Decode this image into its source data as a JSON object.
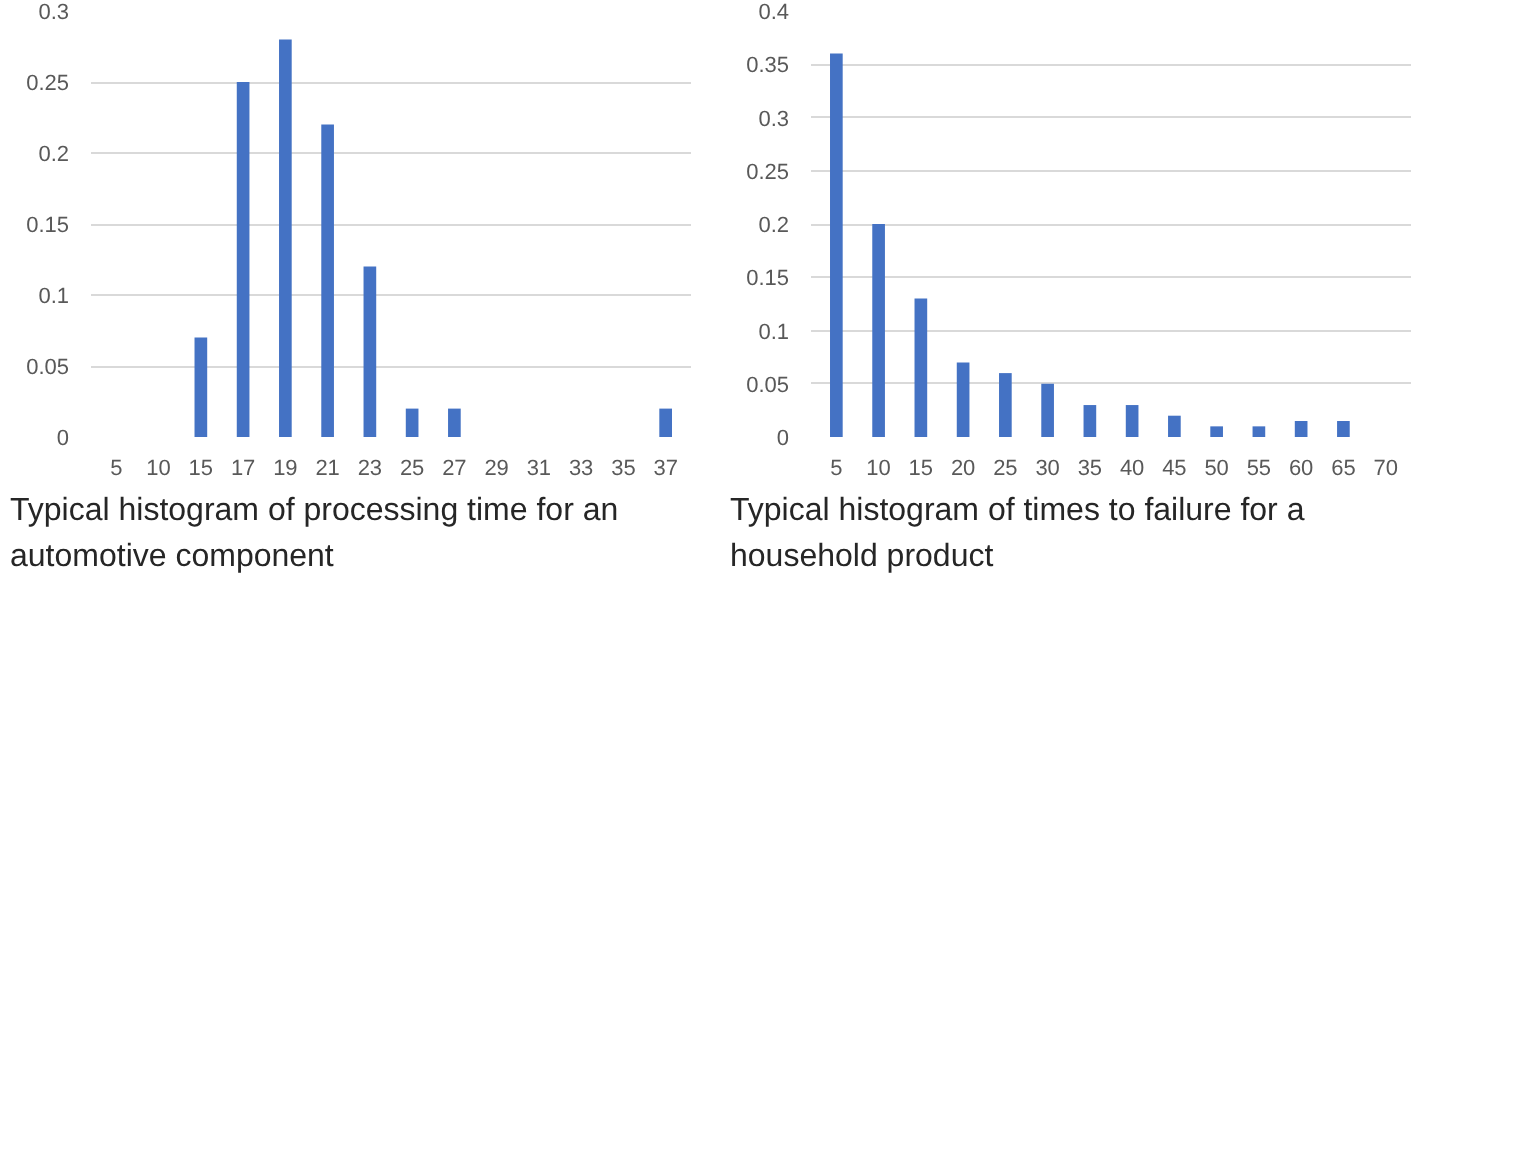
{
  "chart_data": [
    {
      "type": "bar",
      "title": "Typical histogram of processing time for an automotive component",
      "categories": [
        "5",
        "10",
        "15",
        "17",
        "19",
        "21",
        "23",
        "25",
        "27",
        "29",
        "31",
        "33",
        "35",
        "37"
      ],
      "values": [
        0,
        0,
        0.07,
        0.25,
        0.28,
        0.22,
        0.12,
        0.02,
        0.02,
        0,
        0,
        0,
        0,
        0.02
      ],
      "color": "#4472c4",
      "ylim": [
        0,
        0.3
      ],
      "yticks": [
        0,
        0.05,
        0.1,
        0.15,
        0.2,
        0.25,
        0.3
      ],
      "grid": "y"
    },
    {
      "type": "bar",
      "title": "Typical histogram of times to failure for a household product",
      "categories": [
        "5",
        "10",
        "15",
        "20",
        "25",
        "30",
        "35",
        "40",
        "45",
        "50",
        "55",
        "60",
        "65",
        "70"
      ],
      "values": [
        0.36,
        0.2,
        0.13,
        0.07,
        0.06,
        0.05,
        0.03,
        0.03,
        0.02,
        0.01,
        0.01,
        0.015,
        0.015,
        0
      ],
      "color": "#4472c4",
      "ylim": [
        0,
        0.4
      ],
      "yticks": [
        0,
        0.05,
        0.1,
        0.15,
        0.2,
        0.25,
        0.3,
        0.35,
        0.4
      ],
      "grid": "y"
    }
  ]
}
